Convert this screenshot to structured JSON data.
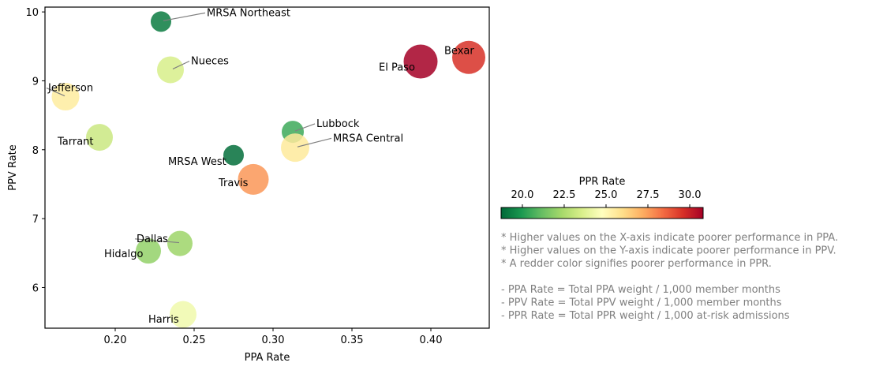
{
  "chart_data": {
    "type": "scatter",
    "title": "",
    "xlabel": "PPA Rate",
    "ylabel": "PPV Rate",
    "xlim": [
      0.1555,
      0.437
    ],
    "ylim": [
      5.41,
      10.07
    ],
    "xticks": [
      0.2,
      0.25,
      0.3,
      0.35,
      0.4
    ],
    "xtick_labels": [
      "0.20",
      "0.25",
      "0.30",
      "0.35",
      "0.40"
    ],
    "yticks": [
      6,
      7,
      8,
      9,
      10
    ],
    "ytick_labels": [
      "6",
      "7",
      "8",
      "9",
      "10"
    ],
    "grid": false,
    "colorbar": {
      "label": "PPR Rate",
      "min": 18.73,
      "max": 30.8,
      "ticks": [
        20.0,
        22.5,
        25.0,
        27.5,
        30.0
      ],
      "tick_labels": [
        "20.0",
        "22.5",
        "25.0",
        "27.5",
        "30.0"
      ],
      "colormap": "RdYlGn_r",
      "placement": "right"
    },
    "points": [
      {
        "name": "MRSA Northeast",
        "x": 0.229,
        "y": 9.86,
        "ppr": 19.2,
        "size": 13
      },
      {
        "name": "Nueces",
        "x": 0.235,
        "y": 9.16,
        "ppr": 23.5,
        "size": 17
      },
      {
        "name": "Jefferson",
        "x": 0.1685,
        "y": 8.77,
        "ppr": 25.5,
        "size": 17.5
      },
      {
        "name": "Tarrant",
        "x": 0.19,
        "y": 8.18,
        "ppr": 23.2,
        "size": 17
      },
      {
        "name": "MRSA West",
        "x": 0.275,
        "y": 7.92,
        "ppr": 18.9,
        "size": 13
      },
      {
        "name": "Travis",
        "x": 0.2875,
        "y": 7.57,
        "ppr": 27.6,
        "size": 19.5
      },
      {
        "name": "Lubbock",
        "x": 0.3125,
        "y": 8.26,
        "ppr": 20.5,
        "size": 14
      },
      {
        "name": "MRSA Central",
        "x": 0.314,
        "y": 8.03,
        "ppr": 25.6,
        "size": 18
      },
      {
        "name": "El Paso",
        "x": 0.3935,
        "y": 9.28,
        "ppr": 30.8,
        "size": 21.5
      },
      {
        "name": "Bexar",
        "x": 0.424,
        "y": 9.34,
        "ppr": 29.6,
        "size": 21
      },
      {
        "name": "Dallas",
        "x": 0.241,
        "y": 6.64,
        "ppr": 22.2,
        "size": 16
      },
      {
        "name": "Hidalgo",
        "x": 0.221,
        "y": 6.53,
        "ppr": 22.0,
        "size": 16
      },
      {
        "name": "Harris",
        "x": 0.243,
        "y": 5.61,
        "ppr": 24.3,
        "size": 17
      }
    ],
    "annotations": [
      {
        "name": "MRSA Northeast",
        "label_x": 0.258,
        "label_y": 9.94,
        "leader": true
      },
      {
        "name": "Nueces",
        "label_x": 0.248,
        "label_y": 9.24,
        "leader": true
      },
      {
        "name": "Jefferson",
        "label_x": 0.1575,
        "label_y": 8.85,
        "leader": true
      },
      {
        "name": "Tarrant",
        "label_x": 0.1635,
        "label_y": 8.07,
        "leader": false
      },
      {
        "name": "MRSA West",
        "label_x": 0.2335,
        "label_y": 7.78,
        "leader": false
      },
      {
        "name": "Travis",
        "label_x": 0.2655,
        "label_y": 7.47,
        "leader": false
      },
      {
        "name": "Lubbock",
        "label_x": 0.3275,
        "label_y": 8.33,
        "leader": true
      },
      {
        "name": "MRSA Central",
        "label_x": 0.338,
        "label_y": 8.12,
        "leader": true
      },
      {
        "name": "El Paso",
        "label_x": 0.367,
        "label_y": 9.15,
        "leader": false
      },
      {
        "name": "Bexar",
        "label_x": 0.4085,
        "label_y": 9.39,
        "leader": false
      },
      {
        "name": "Dallas",
        "label_x": 0.2135,
        "label_y": 6.66,
        "leader": true
      },
      {
        "name": "Hidalgo",
        "label_x": 0.193,
        "label_y": 6.44,
        "leader": false
      },
      {
        "name": "Harris",
        "label_x": 0.221,
        "label_y": 5.49,
        "leader": false
      }
    ]
  },
  "notes": [
    "* Higher values on the X-axis indicate poorer performance in PPA.",
    "* Higher values on the Y-axis indicate poorer performance in PPV.",
    "* A redder color signifies poorer performance in PPR.",
    "",
    "- PPA Rate = Total PPA weight / 1,000 member months",
    "- PPV Rate = Total PPV weight / 1,000 member months",
    "- PPR Rate = Total PPR weight / 1,000 at-risk admissions"
  ]
}
